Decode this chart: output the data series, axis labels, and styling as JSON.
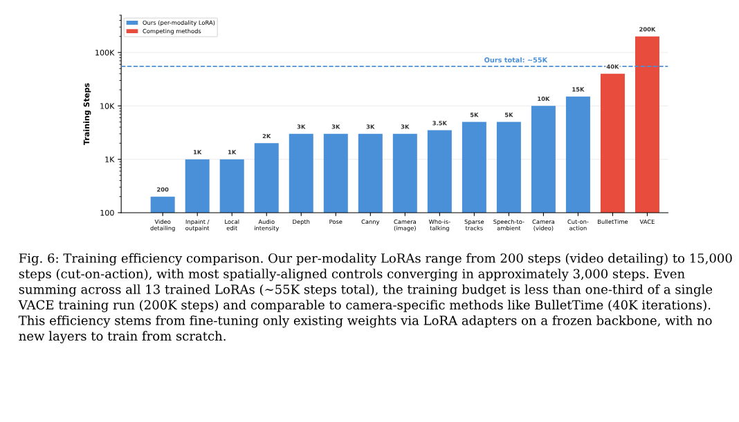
{
  "chart_data": {
    "type": "bar",
    "ylabel": "Training Steps",
    "categories": [
      "Video\ndetailing",
      "Inpaint /\noutpaint",
      "Local\nedit",
      "Audio\nintensity",
      "Depth",
      "Pose",
      "Canny",
      "Camera\n(image)",
      "Who-is-\ntalking",
      "Sparse\ntracks",
      "Speech-to-\nambient",
      "Camera\n(video)",
      "Cut-on-\naction",
      "BulletTime",
      "VACE"
    ],
    "series": [
      {
        "name": "Ours (per-modality LoRA)",
        "color": "#4a90d9",
        "values": [
          200,
          1000,
          1000,
          2000,
          3000,
          3000,
          3000,
          3000,
          3500,
          5000,
          5000,
          10000,
          15000,
          null,
          null
        ],
        "value_labels": [
          "200",
          "1K",
          "1K",
          "2K",
          "3K",
          "3K",
          "3K",
          "3K",
          "3.5K",
          "5K",
          "5K",
          "10K",
          "15K",
          null,
          null
        ]
      },
      {
        "name": "Competing methods",
        "color": "#e74c3c",
        "values": [
          null,
          null,
          null,
          null,
          null,
          null,
          null,
          null,
          null,
          null,
          null,
          null,
          null,
          40000,
          200000
        ],
        "value_labels": [
          null,
          null,
          null,
          null,
          null,
          null,
          null,
          null,
          null,
          null,
          null,
          null,
          null,
          "40K",
          "200K"
        ]
      }
    ],
    "log": true,
    "ylim": [
      100,
      500000
    ],
    "yticks": [
      {
        "value": 100,
        "label": "100"
      },
      {
        "value": 1000,
        "label": "1K"
      },
      {
        "value": 10000,
        "label": "10K"
      },
      {
        "value": 100000,
        "label": "100K"
      }
    ],
    "ref_lines": [
      {
        "axis": "y",
        "value": 55000,
        "label": "Ours total: ~55K",
        "color": "#4a90d9",
        "line_style": "dashed"
      }
    ],
    "grid": "y",
    "legend": "top left",
    "annotations": [
      "Fig. 6: Training efficiency comparison. Our per-modality LoRAs range from 200 steps (video detailing) to 15,000 steps (cut-on-action), with most spatially-aligned controls converging in approximately 3,000 steps. Even summing across all 13 trained LoRAs (∼55K steps total), the training budget is less than one-third of a single VACE training run (200K steps) and comparable to camera-specific methods like BulletTime (40K iterations). This efficiency stems from fine-tuning only existing weights via LoRA adapters on a frozen backbone, with no new layers to train from scratch."
    ]
  }
}
